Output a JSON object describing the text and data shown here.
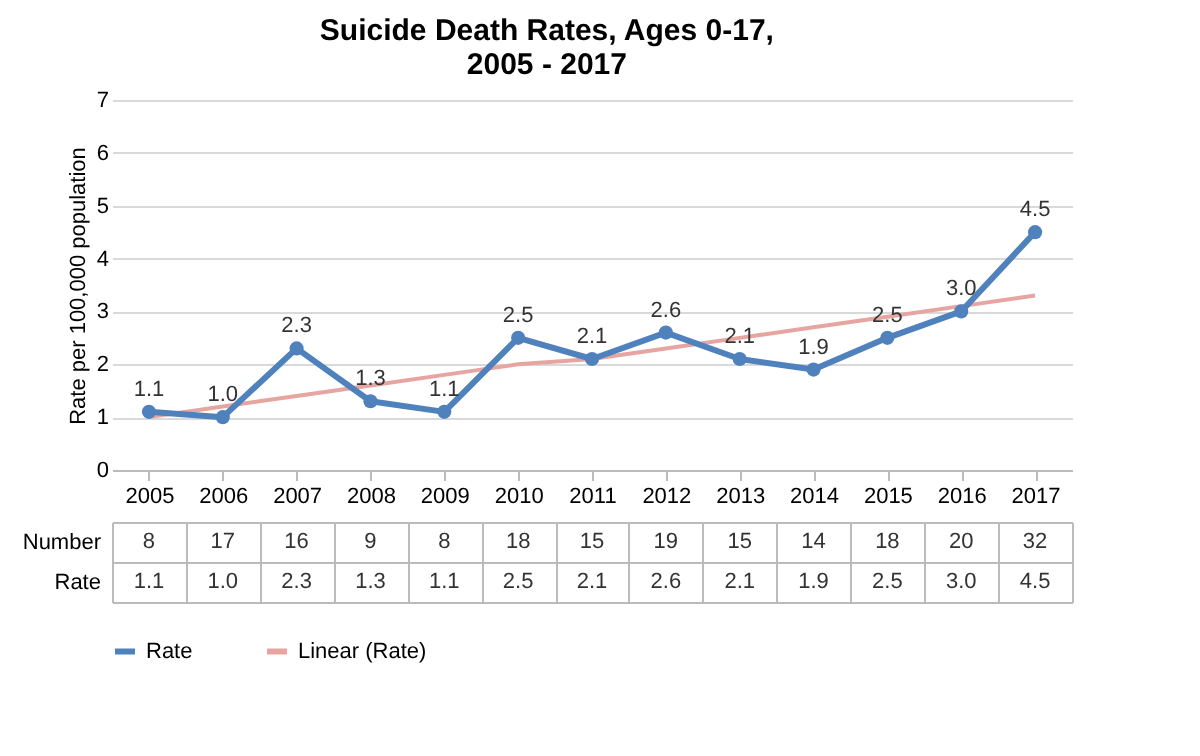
{
  "chart_data": {
    "type": "line",
    "title": "Suicide Death Rates, Ages 0-17,\n2005 - 2017",
    "ylabel": "Rate per 100,000 population",
    "categories": [
      "2005",
      "2006",
      "2007",
      "2008",
      "2009",
      "2010",
      "2011",
      "2012",
      "2013",
      "2014",
      "2015",
      "2016",
      "2017"
    ],
    "series": [
      {
        "name": "Rate",
        "color": "#4f81bd",
        "marker": "circle",
        "values": [
          1.1,
          1.0,
          2.3,
          1.3,
          1.1,
          2.5,
          2.1,
          2.6,
          2.1,
          1.9,
          2.5,
          3.0,
          4.5
        ],
        "value_labels": [
          "1.1",
          "1.0",
          "2.3",
          "1.3",
          "1.1",
          "2.5",
          "2.1",
          "2.6",
          "2.1",
          "1.9",
          "2.5",
          "3.0",
          "4.5"
        ]
      },
      {
        "name": "Linear (Rate)",
        "color": "#e6a5a0",
        "marker": "none",
        "values": [
          1.0,
          1.2,
          1.4,
          1.6,
          1.8,
          2.0,
          2.1,
          2.3,
          2.5,
          2.7,
          2.9,
          3.1,
          3.3
        ]
      }
    ],
    "annotations": [
      "Number",
      "8",
      "17",
      "16",
      "9",
      "8",
      "18",
      "15",
      "19",
      "15",
      "14",
      "18",
      "20",
      "32",
      "Rate",
      "1.1",
      "1.0",
      "2.3",
      "1.3",
      "1.1",
      "2.5",
      "2.1",
      "2.6",
      "2.1",
      "1.9",
      "2.5",
      "3.0",
      "4.5"
    ],
    "ylim": [
      0,
      7
    ],
    "yticks": [
      0,
      1,
      2,
      3,
      4,
      5,
      6,
      7
    ],
    "grid": "y",
    "legend": "bottom",
    "line_style": "solid"
  }
}
